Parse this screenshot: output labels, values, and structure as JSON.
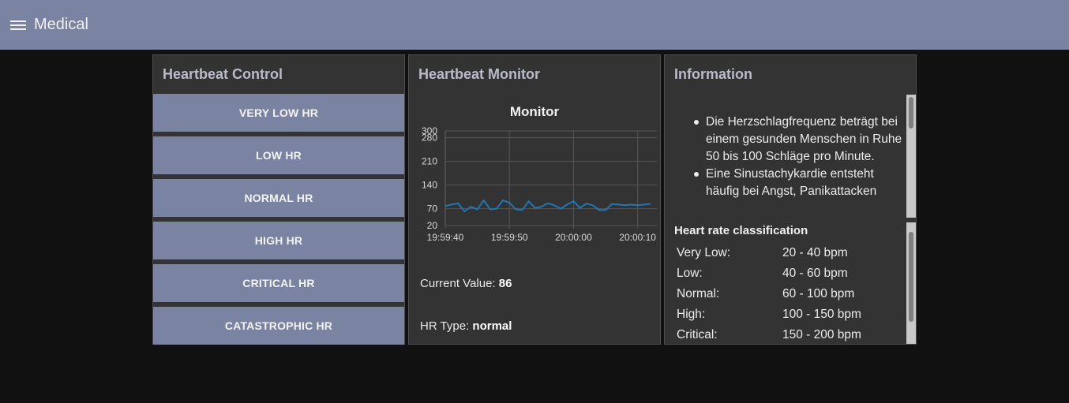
{
  "header": {
    "title": "Medical",
    "menu_icon": "hamburger-menu-icon"
  },
  "control": {
    "title": "Heartbeat Control",
    "buttons": [
      "VERY LOW HR",
      "LOW HR",
      "NORMAL HR",
      "HIGH HR",
      "CRITICAL HR",
      "CATASTROPHIC HR"
    ]
  },
  "monitor": {
    "title": "Heartbeat Monitor",
    "current_label": "Current Value:",
    "current_value": "86",
    "type_label": "HR Type:",
    "type_value": "normal"
  },
  "chart_data": {
    "type": "line",
    "title": "Monitor",
    "xlabel": "",
    "ylabel": "",
    "y_ticks": [
      20,
      70,
      140,
      210,
      280,
      300
    ],
    "ylim": [
      20,
      300
    ],
    "x_ticks": [
      "19:59:40",
      "19:59:50",
      "20:00:00",
      "20:00:10"
    ],
    "x_seconds_range": [
      0,
      33
    ],
    "grid": true,
    "color": "#1f77b4",
    "series": [
      {
        "x": [
          0,
          2,
          3,
          4,
          5,
          6,
          7,
          8,
          9,
          10,
          11,
          12,
          13,
          14,
          15,
          16,
          17,
          18,
          19,
          20,
          21,
          22,
          23,
          24,
          25,
          26,
          27,
          28,
          29,
          30,
          31,
          32
        ],
        "values": [
          78,
          86,
          62,
          76,
          68,
          95,
          68,
          70,
          95,
          88,
          68,
          66,
          92,
          72,
          76,
          86,
          80,
          70,
          82,
          92,
          72,
          85,
          80,
          66,
          66,
          84,
          82,
          80,
          82,
          80,
          82,
          84
        ]
      }
    ]
  },
  "info": {
    "title": "Information",
    "bullets": [
      "Die Herzschlagfrequenz beträgt bei einem gesunden Menschen in Ruhe 50 bis 100 Schläge pro Minute.",
      "Eine Sinustachykardie entsteht häufig bei Angst, Panikattacken"
    ],
    "classification_title": "Heart rate classification",
    "classes": [
      {
        "label": "Very Low:",
        "range": "20 - 40 bpm"
      },
      {
        "label": "Low:",
        "range": "40 - 60 bpm"
      },
      {
        "label": "Normal:",
        "range": "60 - 100 bpm"
      },
      {
        "label": "High:",
        "range": "100 - 150 bpm"
      },
      {
        "label": "Critical:",
        "range": "150 - 200 bpm"
      }
    ]
  }
}
